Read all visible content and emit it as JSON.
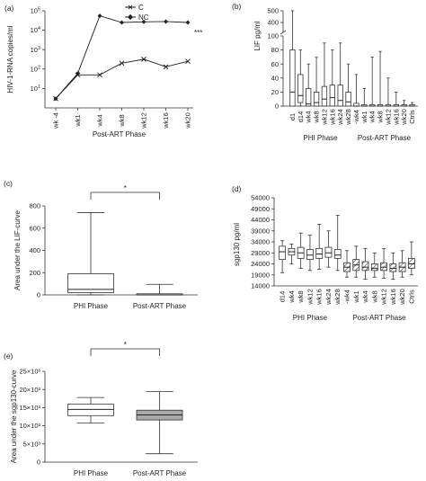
{
  "chart_data": [
    {
      "type": "line",
      "panel": "(a)",
      "ylabel": "HIV-1-RNA copies/ml",
      "xlabel": "Post-ART Phase",
      "categories": [
        "wk -4",
        "wk1",
        "wk4",
        "wk8",
        "wk12",
        "wk16",
        "wk20"
      ],
      "y_scale": "log",
      "ylim": [
        1,
        100000
      ],
      "y_ticks": [
        "10^1",
        "10^2",
        "10^3",
        "10^4",
        "10^5"
      ],
      "series": [
        {
          "name": "C",
          "marker": "x",
          "values": [
            3,
            50,
            50,
            200,
            320,
            130,
            250
          ]
        },
        {
          "name": "NC",
          "marker": "diamond",
          "values": [
            3,
            60,
            55000,
            25000,
            27000,
            28000,
            25000
          ]
        }
      ],
      "annotation": "***",
      "legend": "top-right"
    },
    {
      "type": "box",
      "panel": "(b)",
      "ylabel": "LIF pg/ml",
      "y_ticks": [
        "0",
        "20",
        "40",
        "60",
        "80",
        "100",
        "400",
        "500"
      ],
      "axis_break": [
        100,
        400
      ],
      "group_labels": [
        "PHI Phase",
        "Post-ART Phase"
      ],
      "categories": [
        "d1",
        "d14",
        "wk4",
        "wk8",
        "wk12",
        "wk16",
        "wk24",
        "wk28",
        "-wk4",
        "wk1",
        "wk4",
        "wk8",
        "wk12",
        "wk16",
        "wk20",
        "Ctrls"
      ],
      "hatched": [
        false,
        false,
        false,
        false,
        false,
        false,
        false,
        false,
        false,
        false,
        false,
        false,
        false,
        false,
        false,
        false
      ],
      "boxes": [
        {
          "min": 0,
          "q1": 0,
          "median": 20,
          "q3": 80,
          "max": 500
        },
        {
          "min": 0,
          "q1": 5,
          "median": 15,
          "q3": 45,
          "max": 165
        },
        {
          "min": 0,
          "q1": 0,
          "median": 3,
          "q3": 25,
          "max": 60
        },
        {
          "min": 0,
          "q1": 0,
          "median": 5,
          "q3": 20,
          "max": 102
        },
        {
          "min": 0,
          "q1": 0,
          "median": 10,
          "q3": 28,
          "max": 90
        },
        {
          "min": 0,
          "q1": 0,
          "median": 12,
          "q3": 30,
          "max": 80
        },
        {
          "min": 0,
          "q1": 0,
          "median": 8,
          "q3": 30,
          "max": 90
        },
        {
          "min": 0,
          "q1": 0,
          "median": 6,
          "q3": 20,
          "max": 60
        },
        {
          "min": 0,
          "q1": 0,
          "median": 0,
          "q3": 4,
          "max": 45
        },
        {
          "min": 0,
          "q1": 0,
          "median": 0,
          "q3": 2,
          "max": 25
        },
        {
          "min": 0,
          "q1": 0,
          "median": 0,
          "q3": 2,
          "max": 70
        },
        {
          "min": 0,
          "q1": 0,
          "median": 0,
          "q3": 2,
          "max": 78
        },
        {
          "min": 0,
          "q1": 0,
          "median": 0,
          "q3": 2,
          "max": 40
        },
        {
          "min": 0,
          "q1": 0,
          "median": 0,
          "q3": 2,
          "max": 20
        },
        {
          "min": 0,
          "q1": 0,
          "median": 0,
          "q3": 2,
          "max": 8
        },
        {
          "min": 0,
          "q1": 0,
          "median": 0,
          "q3": 2,
          "max": 5
        }
      ]
    },
    {
      "type": "box",
      "panel": "(c)",
      "ylabel": "Area under the LIF-curve",
      "ylim": [
        0,
        800
      ],
      "y_ticks": [
        "0",
        "200",
        "400",
        "600",
        "800"
      ],
      "categories": [
        "PHI Phase",
        "Post-ART Phase"
      ],
      "fills": [
        "#ffffff",
        "#ffffff"
      ],
      "boxes": [
        {
          "min": 0,
          "q1": 20,
          "median": 50,
          "q3": 190,
          "max": 740
        },
        {
          "min": 0,
          "q1": 0,
          "median": 0,
          "q3": 10,
          "max": 95
        }
      ],
      "significance": "*"
    },
    {
      "type": "box",
      "panel": "(d)",
      "ylabel": "sgp130 pg/ml",
      "ylim": [
        14000,
        54000
      ],
      "y_ticks": [
        "14000",
        "19000",
        "24000",
        "29000",
        "34000",
        "39000",
        "44000",
        "49000",
        "54000"
      ],
      "group_labels": [
        "PHI Phase",
        "Post-ART Phase"
      ],
      "categories": [
        "d14",
        "wk4",
        "wk8",
        "wk12",
        "wk16",
        "wk24",
        "wk28",
        "-wk4",
        "wk1",
        "wk4",
        "wk8",
        "wk12",
        "wk16",
        "wk20",
        "Ctrls"
      ],
      "hatched": [
        false,
        false,
        false,
        false,
        false,
        false,
        false,
        true,
        true,
        true,
        true,
        true,
        true,
        true,
        true
      ],
      "boxes": [
        {
          "min": 20000,
          "q1": 26000,
          "median": 29500,
          "q3": 32000,
          "max": 34500
        },
        {
          "min": 24000,
          "q1": 28000,
          "median": 29500,
          "q3": 31000,
          "max": 33000
        },
        {
          "min": 22000,
          "q1": 26500,
          "median": 29000,
          "q3": 31500,
          "max": 38000
        },
        {
          "min": 21000,
          "q1": 26000,
          "median": 28000,
          "q3": 30500,
          "max": 37000
        },
        {
          "min": 21500,
          "q1": 26500,
          "median": 28500,
          "q3": 31000,
          "max": 42000
        },
        {
          "min": 22500,
          "q1": 27000,
          "median": 29000,
          "q3": 31500,
          "max": 39000
        },
        {
          "min": 21000,
          "q1": 26500,
          "median": 28000,
          "q3": 30500,
          "max": 46000
        },
        {
          "min": 18000,
          "q1": 20500,
          "median": 22500,
          "q3": 24500,
          "max": 30000
        },
        {
          "min": 18000,
          "q1": 21000,
          "median": 23500,
          "q3": 26000,
          "max": 32000
        },
        {
          "min": 17000,
          "q1": 21000,
          "median": 22500,
          "q3": 25000,
          "max": 31000
        },
        {
          "min": 18000,
          "q1": 21000,
          "median": 22000,
          "q3": 24000,
          "max": 29000
        },
        {
          "min": 17500,
          "q1": 21000,
          "median": 22500,
          "q3": 24500,
          "max": 31000
        },
        {
          "min": 17000,
          "q1": 20500,
          "median": 22000,
          "q3": 24000,
          "max": 29000
        },
        {
          "min": 18000,
          "q1": 20500,
          "median": 22500,
          "q3": 24500,
          "max": 30000
        },
        {
          "min": 19000,
          "q1": 22000,
          "median": 24000,
          "q3": 26500,
          "max": 34000
        }
      ]
    },
    {
      "type": "box",
      "panel": "(e)",
      "ylabel": "Area under the sgp130-curve",
      "ylim": [
        0,
        25000
      ],
      "y_ticks": [
        "0",
        "5×10³",
        "10×10³",
        "15×10³",
        "20×10³",
        "25×10³"
      ],
      "categories": [
        "PHI Phase",
        "Post-ART Phase"
      ],
      "fills": [
        "#ffffff",
        "#aaaaaa"
      ],
      "boxes": [
        {
          "min": 10800,
          "q1": 12800,
          "median": 14500,
          "q3": 16000,
          "max": 17800
        },
        {
          "min": 2300,
          "q1": 11600,
          "median": 13000,
          "q3": 14300,
          "max": 19400
        }
      ],
      "significance": "*"
    }
  ]
}
